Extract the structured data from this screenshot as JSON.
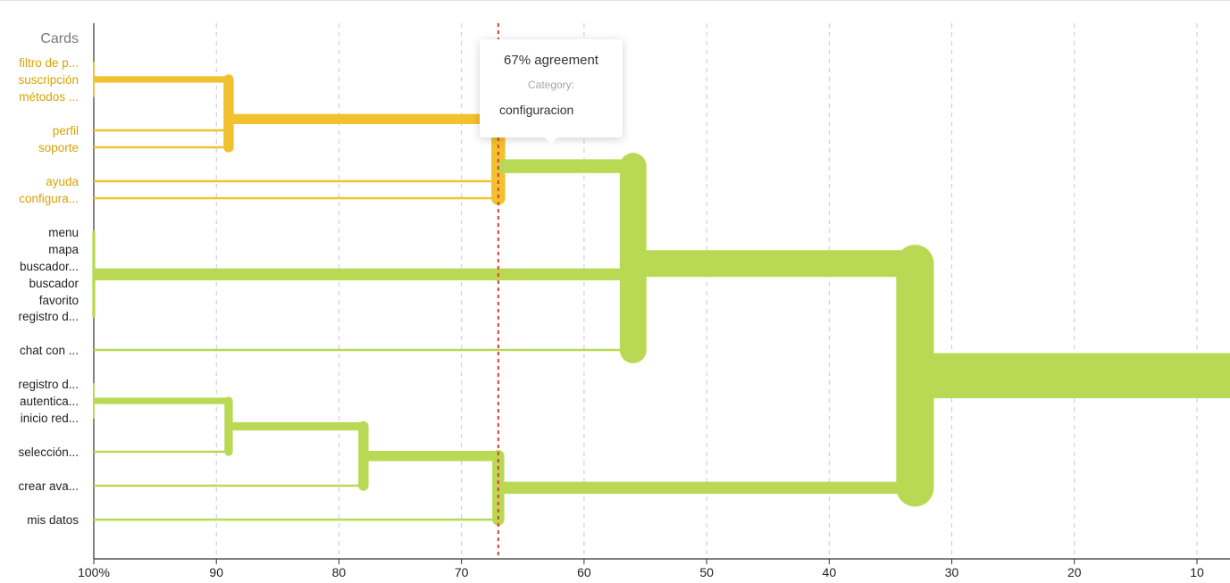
{
  "chart_data": {
    "type": "dendrogram",
    "title": "",
    "xlabel": "",
    "ylabel": "Cards",
    "orientation": "horizontal",
    "x_axis": {
      "min": 7,
      "max": 100,
      "reversed": true,
      "ticks": [
        100,
        90,
        80,
        70,
        60,
        50,
        40,
        30,
        20,
        10
      ],
      "tick_labels": [
        "100%",
        "90",
        "80",
        "70",
        "60",
        "50",
        "40",
        "30",
        "20",
        "10"
      ]
    },
    "grid": "vertical-dashed",
    "threshold": {
      "value": 67,
      "style": "dashed",
      "color": "#e03c31"
    },
    "colors": {
      "cluster_1": "#f2c12e",
      "cluster_1_label": "#d9a200",
      "cluster_2": "#b9d954",
      "cluster_2_label": "#222222",
      "axis": "#333333",
      "grid": "#c8c8c8",
      "threshold": "#e03c31"
    },
    "leaves": [
      {
        "label": "filtro de p...",
        "cluster": 1
      },
      {
        "label": "suscripción",
        "cluster": 1
      },
      {
        "label": "métodos ...",
        "cluster": 1
      },
      {
        "label": "perfil",
        "cluster": 1
      },
      {
        "label": "soporte",
        "cluster": 1
      },
      {
        "label": "ayuda",
        "cluster": 1
      },
      {
        "label": "configura...",
        "cluster": 1
      },
      {
        "label": "menu",
        "cluster": 2
      },
      {
        "label": "mapa",
        "cluster": 2
      },
      {
        "label": "buscador...",
        "cluster": 2
      },
      {
        "label": "buscador",
        "cluster": 2
      },
      {
        "label": "favorito",
        "cluster": 2
      },
      {
        "label": "registro d...",
        "cluster": 2
      },
      {
        "label": "chat con ...",
        "cluster": 2
      },
      {
        "label": "registro d...",
        "cluster": 2
      },
      {
        "label": "autentica...",
        "cluster": 2
      },
      {
        "label": "inicio red...",
        "cluster": 2
      },
      {
        "label": "selección...",
        "cluster": 2
      },
      {
        "label": "crear ava...",
        "cluster": 2
      },
      {
        "label": "mis datos",
        "cluster": 2
      }
    ],
    "merges": [
      {
        "id": "A",
        "agreement": 100,
        "children": [
          "L0",
          "L1",
          "L2"
        ],
        "cluster": 1
      },
      {
        "id": "B",
        "agreement": 89,
        "children": [
          "A",
          "L3",
          "L4"
        ],
        "cluster": 1
      },
      {
        "id": "C",
        "agreement": 67,
        "children": [
          "B",
          "L5",
          "L6"
        ],
        "cluster": 1
      },
      {
        "id": "D",
        "agreement": 100,
        "children": [
          "L7",
          "L8",
          "L9",
          "L10",
          "L11",
          "L12"
        ],
        "cluster": 2
      },
      {
        "id": "E",
        "agreement": 56,
        "children": [
          "C",
          "D",
          "L13"
        ],
        "cluster": 2
      },
      {
        "id": "F",
        "agreement": 100,
        "children": [
          "L14",
          "L15",
          "L16"
        ],
        "cluster": 2
      },
      {
        "id": "G",
        "agreement": 89,
        "children": [
          "F",
          "L17"
        ],
        "cluster": 2
      },
      {
        "id": "H",
        "agreement": 78,
        "children": [
          "G",
          "L18"
        ],
        "cluster": 2
      },
      {
        "id": "I",
        "agreement": 67,
        "children": [
          "H",
          "L19"
        ],
        "cluster": 2
      },
      {
        "id": "J",
        "agreement": 33,
        "children": [
          "E",
          "I"
        ],
        "cluster": 2
      }
    ]
  },
  "tooltip": {
    "title": "67% agreement",
    "category_label": "Category:",
    "category_value": "configuracion"
  }
}
